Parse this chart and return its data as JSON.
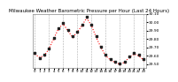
{
  "title": "Milwaukee Weather Barometric Pressure per Hour (Last 24 Hours)",
  "background_color": "#ffffff",
  "plot_bg_color": "#ffffff",
  "grid_color": "#999999",
  "hours": [
    0,
    1,
    2,
    3,
    4,
    5,
    6,
    7,
    8,
    9,
    10,
    11,
    12,
    13,
    14,
    15,
    16,
    17,
    18,
    19,
    20,
    21,
    22,
    23
  ],
  "pressure_red": [
    29.62,
    29.58,
    29.6,
    29.68,
    29.8,
    29.92,
    29.98,
    29.9,
    29.82,
    29.88,
    29.96,
    30.05,
    29.96,
    29.82,
    29.7,
    29.6,
    29.55,
    29.52,
    29.5,
    29.52,
    29.58,
    29.62,
    29.6,
    29.55
  ],
  "pressure_black": [
    29.63,
    29.57,
    29.61,
    29.69,
    29.81,
    29.93,
    29.99,
    29.91,
    29.83,
    29.89,
    29.97,
    30.06,
    29.97,
    29.83,
    29.71,
    29.61,
    29.56,
    29.53,
    29.51,
    29.53,
    29.59,
    29.63,
    29.61,
    29.56
  ],
  "ylim": [
    29.46,
    30.1
  ],
  "yticks": [
    29.5,
    29.6,
    29.7,
    29.8,
    29.9,
    30.0,
    30.1
  ],
  "ytick_labels": [
    "29.50",
    "29.60",
    "29.70",
    "29.80",
    "29.90",
    "30.00",
    "30.10"
  ],
  "title_fontsize": 4.0,
  "tick_fontsize": 3.2,
  "line_color": "#ff0000",
  "scatter_color": "#222222",
  "grid_line_hours": [
    0,
    3,
    6,
    9,
    12,
    15,
    18,
    21,
    23
  ],
  "xtick_labels": [
    "0",
    "1",
    "2",
    "3",
    "4",
    "5",
    "6",
    "7",
    "8",
    "9",
    "10",
    "11",
    "12",
    "13",
    "14",
    "15",
    "16",
    "17",
    "18",
    "19",
    "20",
    "21",
    "22",
    "23"
  ]
}
